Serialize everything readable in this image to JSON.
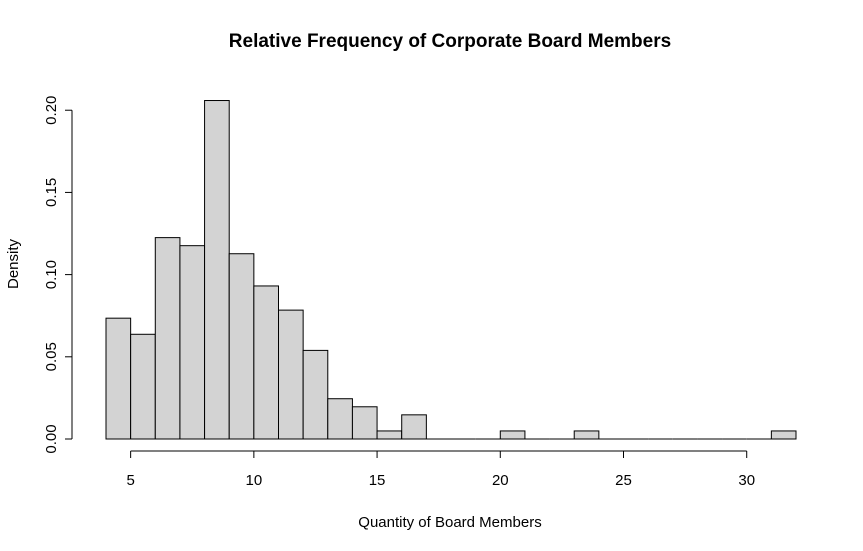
{
  "chart_data": {
    "type": "bar",
    "title": "Relative Frequency of Corporate Board Members",
    "xlabel": "Quantity of Board Members",
    "ylabel": "Density",
    "xlim": [
      4,
      32
    ],
    "ylim": [
      0,
      0.205
    ],
    "bin_width": 1,
    "x_ticks": [
      5,
      10,
      15,
      20,
      25,
      30
    ],
    "y_ticks": [
      0.0,
      0.05,
      0.1,
      0.15,
      0.2
    ],
    "y_tick_labels": [
      "0.00",
      "0.05",
      "0.10",
      "0.15",
      "0.20"
    ],
    "bins": [
      {
        "start": 4,
        "end": 5,
        "density": 0.0735
      },
      {
        "start": 5,
        "end": 6,
        "density": 0.0637
      },
      {
        "start": 6,
        "end": 7,
        "density": 0.1225
      },
      {
        "start": 7,
        "end": 8,
        "density": 0.1176
      },
      {
        "start": 8,
        "end": 9,
        "density": 0.2059
      },
      {
        "start": 9,
        "end": 10,
        "density": 0.1127
      },
      {
        "start": 10,
        "end": 11,
        "density": 0.0931
      },
      {
        "start": 11,
        "end": 12,
        "density": 0.0784
      },
      {
        "start": 12,
        "end": 13,
        "density": 0.0539
      },
      {
        "start": 13,
        "end": 14,
        "density": 0.0245
      },
      {
        "start": 14,
        "end": 15,
        "density": 0.0196
      },
      {
        "start": 15,
        "end": 16,
        "density": 0.0049
      },
      {
        "start": 16,
        "end": 17,
        "density": 0.0147
      },
      {
        "start": 17,
        "end": 18,
        "density": 0
      },
      {
        "start": 18,
        "end": 19,
        "density": 0
      },
      {
        "start": 19,
        "end": 20,
        "density": 0
      },
      {
        "start": 20,
        "end": 21,
        "density": 0.0049
      },
      {
        "start": 21,
        "end": 22,
        "density": 0
      },
      {
        "start": 22,
        "end": 23,
        "density": 0
      },
      {
        "start": 23,
        "end": 24,
        "density": 0.0049
      },
      {
        "start": 24,
        "end": 25,
        "density": 0
      },
      {
        "start": 25,
        "end": 26,
        "density": 0
      },
      {
        "start": 26,
        "end": 27,
        "density": 0
      },
      {
        "start": 27,
        "end": 28,
        "density": 0
      },
      {
        "start": 28,
        "end": 29,
        "density": 0
      },
      {
        "start": 29,
        "end": 30,
        "density": 0
      },
      {
        "start": 30,
        "end": 31,
        "density": 0
      },
      {
        "start": 31,
        "end": 32,
        "density": 0.0049
      }
    ],
    "colors": {
      "bar_fill": "#d3d3d3",
      "bar_stroke": "#000000"
    },
    "grid": false,
    "legend": "none"
  }
}
